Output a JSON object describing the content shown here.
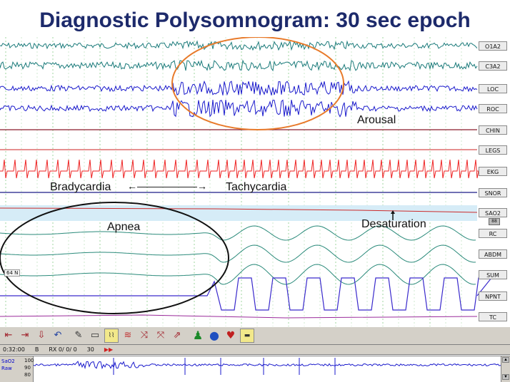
{
  "title": "Diagnostic Polysomnogram: 30 sec epoch",
  "channels": [
    {
      "label": "O1A2"
    },
    {
      "label": "C3A2"
    },
    {
      "label": "LOC"
    },
    {
      "label": "ROC"
    },
    {
      "label": "CHIN"
    },
    {
      "label": "LEGS"
    },
    {
      "label": "EKG"
    },
    {
      "label": "SNOR"
    },
    {
      "label": "SAO2"
    },
    {
      "label": "RC"
    },
    {
      "label": "ABDM"
    },
    {
      "label": "SUM"
    },
    {
      "label": "NPNT"
    },
    {
      "label": "TC"
    }
  ],
  "annotations": {
    "arousal": "Arousal",
    "bradycardia": "Bradycardia",
    "tachycardia": "Tachycardia",
    "apnea": "Apnea",
    "desaturation": "Desaturation",
    "arrow": "←——————→"
  },
  "scale_tag": "64 N",
  "sao2_tag": "88",
  "toolbar": {
    "icons": [
      "prev-epoch-icon",
      "next-epoch-icon",
      "save-icon",
      "undo-icon",
      "edit-icon",
      "print-icon",
      "waveform-icon",
      "montage-icon",
      "filter-icon",
      "stage-icon",
      "export-icon",
      "person-icon",
      "brain-icon",
      "lungs-icon",
      "ruler-icon"
    ]
  },
  "status": {
    "time": "0:32:00",
    "stage": "B",
    "rx": "RX 0/ 0/ 0",
    "epoch": "30",
    "play": "▶▶"
  },
  "mini": {
    "channel": "SaO2",
    "sub": "Raw",
    "scale_top": "100",
    "scale_mid": "90",
    "scale_low": "80"
  }
}
